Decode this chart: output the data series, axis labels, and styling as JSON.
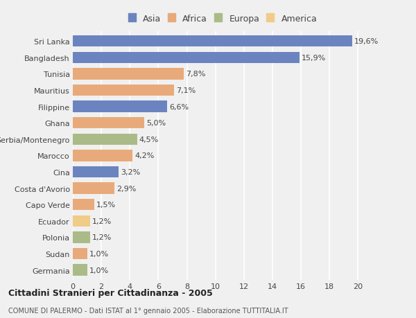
{
  "categories": [
    "Germania",
    "Sudan",
    "Polonia",
    "Ecuador",
    "Capo Verde",
    "Costa d'Avorio",
    "Cina",
    "Marocco",
    "Serbia/Montenegro",
    "Ghana",
    "Filippine",
    "Mauritius",
    "Tunisia",
    "Bangladesh",
    "Sri Lanka"
  ],
  "values": [
    1.0,
    1.0,
    1.2,
    1.2,
    1.5,
    2.9,
    3.2,
    4.2,
    4.5,
    5.0,
    6.6,
    7.1,
    7.8,
    15.9,
    19.6
  ],
  "labels": [
    "1,0%",
    "1,0%",
    "1,2%",
    "1,2%",
    "1,5%",
    "2,9%",
    "3,2%",
    "4,2%",
    "4,5%",
    "5,0%",
    "6,6%",
    "7,1%",
    "7,8%",
    "15,9%",
    "19,6%"
  ],
  "continents": [
    "Europa",
    "Africa",
    "Europa",
    "America",
    "Africa",
    "Africa",
    "Asia",
    "Africa",
    "Europa",
    "Africa",
    "Asia",
    "Africa",
    "Africa",
    "Asia",
    "Asia"
  ],
  "continent_colors": {
    "Asia": "#6B84C0",
    "Africa": "#E8AA7A",
    "Europa": "#AABB88",
    "America": "#F0CC88"
  },
  "legend_order": [
    "Asia",
    "Africa",
    "Europa",
    "America"
  ],
  "title": "Cittadini Stranieri per Cittadinanza - 2005",
  "subtitle": "COMUNE DI PALERMO - Dati ISTAT al 1° gennaio 2005 - Elaborazione TUTTITALIA.IT",
  "xlim": [
    0,
    21
  ],
  "xticks": [
    0,
    2,
    4,
    6,
    8,
    10,
    12,
    14,
    16,
    18,
    20
  ],
  "background_color": "#f0f0f0",
  "grid_color": "#ffffff",
  "bar_height": 0.7,
  "label_fontsize": 8,
  "ytick_fontsize": 8,
  "xtick_fontsize": 8
}
